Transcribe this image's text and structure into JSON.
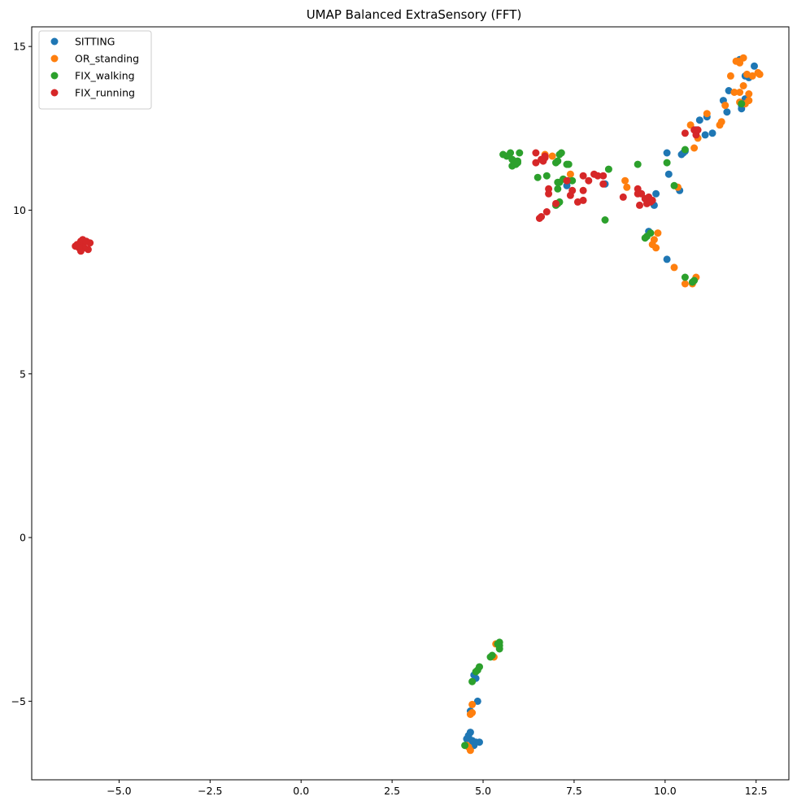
{
  "chart_data": {
    "type": "scatter",
    "title": "UMAP Balanced ExtraSensory (FFT)",
    "xlabel": "",
    "ylabel": "",
    "xlim": [
      -7.4,
      13.4
    ],
    "ylim": [
      -7.4,
      15.6
    ],
    "xticks": [
      -5.0,
      -2.5,
      0.0,
      2.5,
      5.0,
      7.5,
      10.0,
      12.5
    ],
    "xtick_labels": [
      "−5.0",
      "−2.5",
      "0.0",
      "2.5",
      "5.0",
      "7.5",
      "10.0",
      "12.5"
    ],
    "yticks": [
      -5,
      0,
      5,
      10,
      15
    ],
    "ytick_labels": [
      "−5",
      "0",
      "5",
      "10",
      "15"
    ],
    "grid": false,
    "legend_position": "top-left",
    "series": [
      {
        "name": "SITTING",
        "color": "#1f77b4",
        "points": [
          [
            12.45,
            14.4
          ],
          [
            12.2,
            14.1
          ],
          [
            12.3,
            14.05
          ],
          [
            12.05,
            14.6
          ],
          [
            12.1,
            13.2
          ],
          [
            12.1,
            13.1
          ],
          [
            12.2,
            13.4
          ],
          [
            11.75,
            13.65
          ],
          [
            11.6,
            13.35
          ],
          [
            11.7,
            13.0
          ],
          [
            11.15,
            12.85
          ],
          [
            11.3,
            12.35
          ],
          [
            11.1,
            12.3
          ],
          [
            10.95,
            12.75
          ],
          [
            10.85,
            12.45
          ],
          [
            10.55,
            11.8
          ],
          [
            10.5,
            11.75
          ],
          [
            10.45,
            11.7
          ],
          [
            10.05,
            11.75
          ],
          [
            10.1,
            11.1
          ],
          [
            10.4,
            10.6
          ],
          [
            9.75,
            10.5
          ],
          [
            9.7,
            10.15
          ],
          [
            9.5,
            10.3
          ],
          [
            9.55,
            9.35
          ],
          [
            10.05,
            8.5
          ],
          [
            8.35,
            10.8
          ],
          [
            7.3,
            10.75
          ],
          [
            7.35,
            10.9
          ],
          [
            4.9,
            -6.25
          ],
          [
            4.75,
            -6.35
          ],
          [
            4.8,
            -6.25
          ],
          [
            4.65,
            -5.95
          ],
          [
            4.6,
            -6.05
          ],
          [
            4.55,
            -6.15
          ],
          [
            4.85,
            -5.0
          ],
          [
            4.8,
            -4.3
          ],
          [
            4.75,
            -4.2
          ],
          [
            4.7,
            -6.3
          ],
          [
            4.65,
            -5.3
          ],
          [
            4.7,
            -6.2
          ]
        ]
      },
      {
        "name": "OR_standing",
        "color": "#ff7f0e",
        "points": [
          [
            12.0,
            14.55
          ],
          [
            12.15,
            14.65
          ],
          [
            12.05,
            14.5
          ],
          [
            11.95,
            14.55
          ],
          [
            12.55,
            14.2
          ],
          [
            12.6,
            14.15
          ],
          [
            12.4,
            14.1
          ],
          [
            11.8,
            14.1
          ],
          [
            12.25,
            14.15
          ],
          [
            12.15,
            13.8
          ],
          [
            11.9,
            13.6
          ],
          [
            12.05,
            13.6
          ],
          [
            12.3,
            13.55
          ],
          [
            12.3,
            13.35
          ],
          [
            12.2,
            13.25
          ],
          [
            12.05,
            13.3
          ],
          [
            11.65,
            13.2
          ],
          [
            11.55,
            12.7
          ],
          [
            11.5,
            12.6
          ],
          [
            11.15,
            12.95
          ],
          [
            10.9,
            12.2
          ],
          [
            10.7,
            12.6
          ],
          [
            10.8,
            11.9
          ],
          [
            9.8,
            9.3
          ],
          [
            9.7,
            9.1
          ],
          [
            9.75,
            8.85
          ],
          [
            9.65,
            8.95
          ],
          [
            10.25,
            8.25
          ],
          [
            10.55,
            7.75
          ],
          [
            10.75,
            7.75
          ],
          [
            10.85,
            7.95
          ],
          [
            8.9,
            10.9
          ],
          [
            8.95,
            10.7
          ],
          [
            10.35,
            10.7
          ],
          [
            9.55,
            10.25
          ],
          [
            6.9,
            11.65
          ],
          [
            7.4,
            11.1
          ],
          [
            6.7,
            11.7
          ],
          [
            5.35,
            -3.25
          ],
          [
            5.3,
            -3.65
          ],
          [
            4.7,
            -5.1
          ],
          [
            4.7,
            -5.35
          ],
          [
            4.65,
            -6.5
          ],
          [
            4.6,
            -6.4
          ],
          [
            4.55,
            -6.35
          ],
          [
            4.65,
            -5.4
          ]
        ]
      },
      {
        "name": "FIX_walking",
        "color": "#2ca02c",
        "points": [
          [
            12.1,
            13.25
          ],
          [
            10.55,
            11.85
          ],
          [
            10.05,
            11.45
          ],
          [
            9.25,
            11.4
          ],
          [
            10.25,
            10.75
          ],
          [
            9.5,
            10.35
          ],
          [
            9.6,
            9.3
          ],
          [
            9.5,
            9.2
          ],
          [
            9.45,
            9.15
          ],
          [
            10.55,
            7.95
          ],
          [
            10.8,
            7.85
          ],
          [
            10.75,
            7.8
          ],
          [
            8.45,
            11.25
          ],
          [
            8.35,
            9.7
          ],
          [
            5.55,
            11.7
          ],
          [
            5.65,
            11.65
          ],
          [
            5.75,
            11.75
          ],
          [
            5.8,
            11.55
          ],
          [
            5.85,
            11.45
          ],
          [
            5.9,
            11.4
          ],
          [
            5.8,
            11.35
          ],
          [
            5.95,
            11.5
          ],
          [
            6.0,
            11.75
          ],
          [
            5.95,
            11.45
          ],
          [
            6.5,
            11.0
          ],
          [
            6.75,
            11.05
          ],
          [
            7.0,
            11.45
          ],
          [
            7.05,
            11.5
          ],
          [
            7.1,
            11.7
          ],
          [
            7.15,
            11.75
          ],
          [
            7.3,
            11.4
          ],
          [
            7.35,
            11.4
          ],
          [
            7.05,
            10.85
          ],
          [
            7.1,
            10.85
          ],
          [
            7.2,
            10.95
          ],
          [
            7.05,
            10.65
          ],
          [
            7.45,
            10.9
          ],
          [
            7.0,
            10.15
          ],
          [
            7.05,
            10.2
          ],
          [
            7.1,
            10.25
          ],
          [
            5.45,
            -3.2
          ],
          [
            5.4,
            -3.25
          ],
          [
            5.45,
            -3.4
          ],
          [
            5.45,
            -3.3
          ],
          [
            5.25,
            -3.6
          ],
          [
            5.2,
            -3.65
          ],
          [
            4.9,
            -3.95
          ],
          [
            4.85,
            -4.05
          ],
          [
            4.8,
            -4.1
          ],
          [
            4.7,
            -4.4
          ],
          [
            4.5,
            -6.35
          ]
        ]
      },
      {
        "name": "FIX_running",
        "color": "#d62728",
        "points": [
          [
            -6.05,
            9.05
          ],
          [
            -6.0,
            8.95
          ],
          [
            -5.95,
            8.85
          ],
          [
            -5.85,
            8.8
          ],
          [
            -5.8,
            9.0
          ],
          [
            -6.1,
            8.95
          ],
          [
            -6.2,
            8.9
          ],
          [
            -6.15,
            8.95
          ],
          [
            -6.0,
            9.1
          ],
          [
            -6.05,
            8.75
          ],
          [
            -5.9,
            9.05
          ],
          [
            -6.1,
            8.85
          ],
          [
            10.8,
            12.45
          ],
          [
            10.85,
            12.3
          ],
          [
            10.55,
            12.35
          ],
          [
            10.9,
            12.45
          ],
          [
            6.45,
            11.75
          ],
          [
            6.45,
            11.45
          ],
          [
            6.6,
            11.55
          ],
          [
            6.7,
            11.65
          ],
          [
            6.65,
            11.5
          ],
          [
            6.7,
            11.6
          ],
          [
            7.3,
            10.9
          ],
          [
            7.45,
            10.6
          ],
          [
            6.8,
            10.65
          ],
          [
            6.8,
            10.5
          ],
          [
            7.75,
            11.05
          ],
          [
            7.75,
            10.6
          ],
          [
            7.9,
            10.9
          ],
          [
            8.05,
            11.1
          ],
          [
            8.15,
            11.05
          ],
          [
            8.3,
            11.05
          ],
          [
            8.3,
            10.8
          ],
          [
            7.6,
            10.25
          ],
          [
            7.75,
            10.3
          ],
          [
            7.4,
            10.45
          ],
          [
            7.0,
            10.2
          ],
          [
            6.75,
            9.95
          ],
          [
            6.55,
            9.75
          ],
          [
            6.6,
            9.8
          ],
          [
            8.85,
            10.4
          ],
          [
            9.25,
            10.5
          ],
          [
            9.25,
            10.65
          ],
          [
            9.35,
            10.5
          ],
          [
            9.3,
            10.15
          ],
          [
            9.5,
            10.2
          ],
          [
            9.45,
            10.35
          ],
          [
            9.55,
            10.4
          ],
          [
            9.6,
            10.25
          ],
          [
            9.65,
            10.3
          ]
        ]
      }
    ]
  }
}
